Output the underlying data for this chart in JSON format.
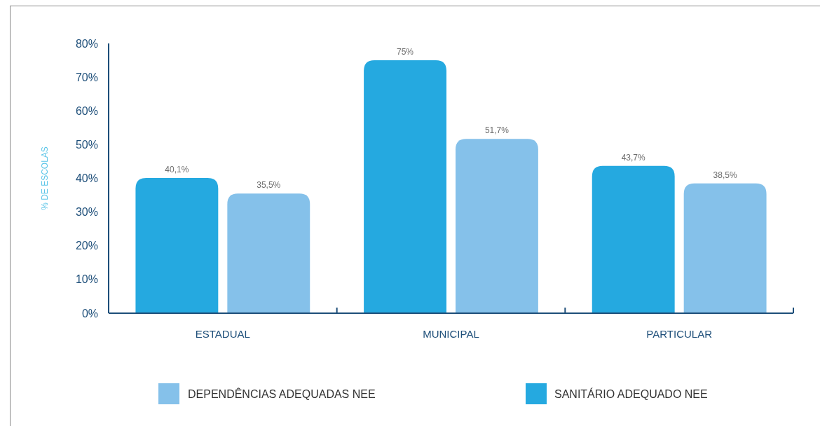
{
  "chart_data": {
    "type": "bar",
    "ylabel": "% DE ESCOLAS",
    "categories": [
      "ESTADUAL",
      "MUNICIPAL",
      "PARTICULAR"
    ],
    "series": [
      {
        "name": "SANITÁRIO ADEQUADO NEE",
        "color": "#25a9e0",
        "values": [
          40.1,
          75,
          43.7
        ],
        "value_labels": [
          "40,1%",
          "75%",
          "43,7%"
        ]
      },
      {
        "name": "DEPENDÊNCIAS ADEQUADAS NEE",
        "color": "#85c1ea",
        "values": [
          35.5,
          51.7,
          38.5
        ],
        "value_labels": [
          "35,5%",
          "51,7%",
          "38,5%"
        ]
      }
    ],
    "ylim": [
      0,
      80
    ],
    "yticks": [
      {
        "value": 0,
        "label": "0%"
      },
      {
        "value": 10,
        "label": "10%"
      },
      {
        "value": 20,
        "label": "20%"
      },
      {
        "value": 30,
        "label": "30%"
      },
      {
        "value": 40,
        "label": "40%"
      },
      {
        "value": 50,
        "label": "50%"
      },
      {
        "value": 60,
        "label": "60%"
      },
      {
        "value": 70,
        "label": "70%"
      },
      {
        "value": 80,
        "label": "80%"
      }
    ],
    "grid": false,
    "legend": "bottom"
  }
}
